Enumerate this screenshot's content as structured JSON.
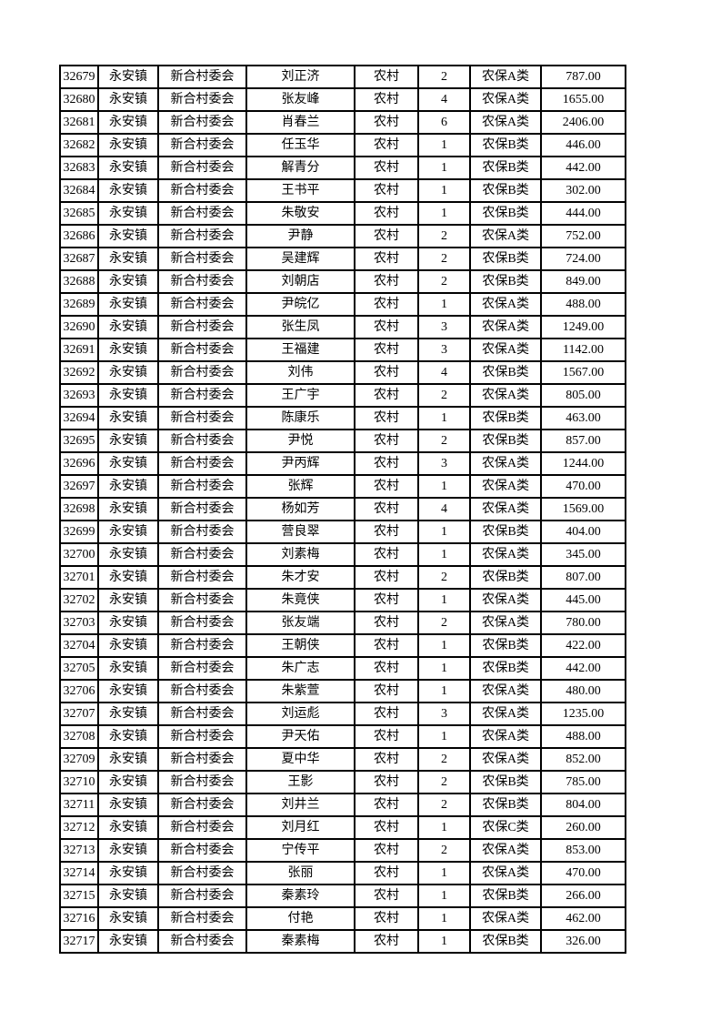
{
  "page": {
    "background_color": "#ffffff",
    "text_color": "#000000",
    "border_color": "#000000"
  },
  "table": {
    "columns": [
      "id",
      "town",
      "village",
      "name",
      "area_type",
      "count",
      "category",
      "amount"
    ],
    "rows": [
      [
        "32679",
        "永安镇",
        "新合村委会",
        "刘正济",
        "农村",
        "2",
        "农保A类",
        "787.00"
      ],
      [
        "32680",
        "永安镇",
        "新合村委会",
        "张友峰",
        "农村",
        "4",
        "农保A类",
        "1655.00"
      ],
      [
        "32681",
        "永安镇",
        "新合村委会",
        "肖春兰",
        "农村",
        "6",
        "农保A类",
        "2406.00"
      ],
      [
        "32682",
        "永安镇",
        "新合村委会",
        "任玉华",
        "农村",
        "1",
        "农保B类",
        "446.00"
      ],
      [
        "32683",
        "永安镇",
        "新合村委会",
        "解青分",
        "农村",
        "1",
        "农保B类",
        "442.00"
      ],
      [
        "32684",
        "永安镇",
        "新合村委会",
        "王书平",
        "农村",
        "1",
        "农保B类",
        "302.00"
      ],
      [
        "32685",
        "永安镇",
        "新合村委会",
        "朱敬安",
        "农村",
        "1",
        "农保B类",
        "444.00"
      ],
      [
        "32686",
        "永安镇",
        "新合村委会",
        "尹静",
        "农村",
        "2",
        "农保A类",
        "752.00"
      ],
      [
        "32687",
        "永安镇",
        "新合村委会",
        "吴建辉",
        "农村",
        "2",
        "农保B类",
        "724.00"
      ],
      [
        "32688",
        "永安镇",
        "新合村委会",
        "刘朝店",
        "农村",
        "2",
        "农保B类",
        "849.00"
      ],
      [
        "32689",
        "永安镇",
        "新合村委会",
        "尹皖亿",
        "农村",
        "1",
        "农保A类",
        "488.00"
      ],
      [
        "32690",
        "永安镇",
        "新合村委会",
        "张生凤",
        "农村",
        "3",
        "农保A类",
        "1249.00"
      ],
      [
        "32691",
        "永安镇",
        "新合村委会",
        "王福建",
        "农村",
        "3",
        "农保A类",
        "1142.00"
      ],
      [
        "32692",
        "永安镇",
        "新合村委会",
        "刘伟",
        "农村",
        "4",
        "农保B类",
        "1567.00"
      ],
      [
        "32693",
        "永安镇",
        "新合村委会",
        "王广宇",
        "农村",
        "2",
        "农保A类",
        "805.00"
      ],
      [
        "32694",
        "永安镇",
        "新合村委会",
        "陈康乐",
        "农村",
        "1",
        "农保B类",
        "463.00"
      ],
      [
        "32695",
        "永安镇",
        "新合村委会",
        "尹悦",
        "农村",
        "2",
        "农保B类",
        "857.00"
      ],
      [
        "32696",
        "永安镇",
        "新合村委会",
        "尹丙辉",
        "农村",
        "3",
        "农保A类",
        "1244.00"
      ],
      [
        "32697",
        "永安镇",
        "新合村委会",
        "张辉",
        "农村",
        "1",
        "农保A类",
        "470.00"
      ],
      [
        "32698",
        "永安镇",
        "新合村委会",
        "杨如芳",
        "农村",
        "4",
        "农保A类",
        "1569.00"
      ],
      [
        "32699",
        "永安镇",
        "新合村委会",
        "营良翠",
        "农村",
        "1",
        "农保B类",
        "404.00"
      ],
      [
        "32700",
        "永安镇",
        "新合村委会",
        "刘素梅",
        "农村",
        "1",
        "农保A类",
        "345.00"
      ],
      [
        "32701",
        "永安镇",
        "新合村委会",
        "朱才安",
        "农村",
        "2",
        "农保B类",
        "807.00"
      ],
      [
        "32702",
        "永安镇",
        "新合村委会",
        "朱竟侠",
        "农村",
        "1",
        "农保A类",
        "445.00"
      ],
      [
        "32703",
        "永安镇",
        "新合村委会",
        "张友端",
        "农村",
        "2",
        "农保A类",
        "780.00"
      ],
      [
        "32704",
        "永安镇",
        "新合村委会",
        "王朝侠",
        "农村",
        "1",
        "农保B类",
        "422.00"
      ],
      [
        "32705",
        "永安镇",
        "新合村委会",
        "朱广志",
        "农村",
        "1",
        "农保B类",
        "442.00"
      ],
      [
        "32706",
        "永安镇",
        "新合村委会",
        "朱紫萱",
        "农村",
        "1",
        "农保A类",
        "480.00"
      ],
      [
        "32707",
        "永安镇",
        "新合村委会",
        "刘运彪",
        "农村",
        "3",
        "农保A类",
        "1235.00"
      ],
      [
        "32708",
        "永安镇",
        "新合村委会",
        "尹天佑",
        "农村",
        "1",
        "农保A类",
        "488.00"
      ],
      [
        "32709",
        "永安镇",
        "新合村委会",
        "夏中华",
        "农村",
        "2",
        "农保A类",
        "852.00"
      ],
      [
        "32710",
        "永安镇",
        "新合村委会",
        "王影",
        "农村",
        "2",
        "农保B类",
        "785.00"
      ],
      [
        "32711",
        "永安镇",
        "新合村委会",
        "刘井兰",
        "农村",
        "2",
        "农保B类",
        "804.00"
      ],
      [
        "32712",
        "永安镇",
        "新合村委会",
        "刘月红",
        "农村",
        "1",
        "农保C类",
        "260.00"
      ],
      [
        "32713",
        "永安镇",
        "新合村委会",
        "宁传平",
        "农村",
        "2",
        "农保A类",
        "853.00"
      ],
      [
        "32714",
        "永安镇",
        "新合村委会",
        "张丽",
        "农村",
        "1",
        "农保A类",
        "470.00"
      ],
      [
        "32715",
        "永安镇",
        "新合村委会",
        "秦素玲",
        "农村",
        "1",
        "农保B类",
        "266.00"
      ],
      [
        "32716",
        "永安镇",
        "新合村委会",
        "付艳",
        "农村",
        "1",
        "农保A类",
        "462.00"
      ],
      [
        "32717",
        "永安镇",
        "新合村委会",
        "秦素梅",
        "农村",
        "1",
        "农保B类",
        "326.00"
      ]
    ]
  }
}
